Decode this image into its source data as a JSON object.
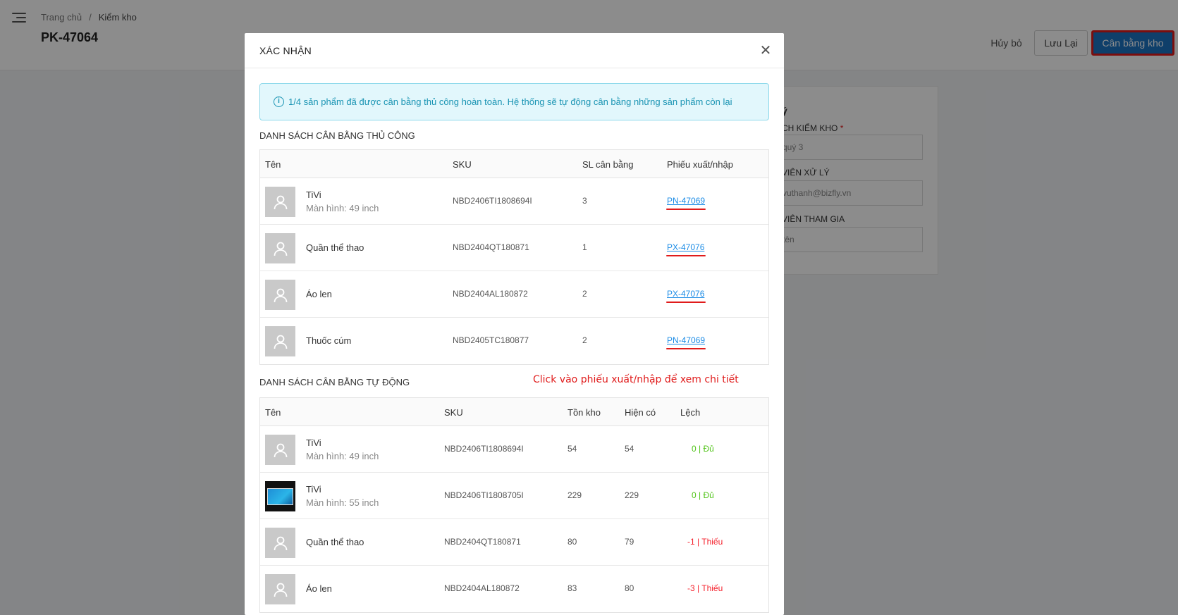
{
  "breadcrumb": {
    "home": "Trang chủ",
    "separator": "/",
    "current": "Kiểm kho"
  },
  "page": {
    "title": "PK-47064"
  },
  "header_buttons": {
    "cancel": "Hủy bỏ",
    "save": "Lưu Lại",
    "balance": "Cân bằng kho"
  },
  "side_form": {
    "heading_fragment": "ý",
    "schedule_label": "CH KIỂM KHO",
    "required_mark": "*",
    "schedule_value": "quý 3",
    "handler_label": "VIÊN XỬ LÝ",
    "handler_value": "vuthanh@bizfly.vn",
    "participants_label": "VIÊN THAM GIA",
    "participants_placeholder": "tên"
  },
  "modal": {
    "title": "XÁC NHẬN",
    "close_icon": "close-icon",
    "alert": "1/4 sản phẩm đã được cân bằng thủ công hoàn toàn. Hệ thống sẽ tự động cân bằng những sản phẩm còn lại",
    "manual_section_title": "DANH SÁCH CÂN BẰNG THỦ CÔNG",
    "auto_section_title": "DANH SÁCH CÂN BẰNG TỰ ĐỘNG",
    "annotation": "Click vào phiếu xuất/nhập để xem chi tiết",
    "manual_headers": [
      "Tên",
      "SKU",
      "SL cân bằng",
      "Phiếu xuất/nhập"
    ],
    "manual_rows": [
      {
        "name": "TiVi",
        "variant": "Màn hình: 49 inch",
        "sku": "NBD2406TI1808694I",
        "qty": "3",
        "voucher": "PN-47069"
      },
      {
        "name": "Quần thể thao",
        "variant": "",
        "sku": "NBD2404QT180871",
        "qty": "1",
        "voucher": "PX-47076"
      },
      {
        "name": "Áo len",
        "variant": "",
        "sku": "NBD2404AL180872",
        "qty": "2",
        "voucher": "PX-47076"
      },
      {
        "name": "Thuốc cúm",
        "variant": "",
        "sku": "NBD2405TC180877",
        "qty": "2",
        "voucher": "PN-47069"
      }
    ],
    "auto_headers": [
      "Tên",
      "SKU",
      "Tồn kho",
      "Hiện có",
      "Lệch"
    ],
    "auto_rows": [
      {
        "name": "TiVi",
        "variant": "Màn hình: 49 inch",
        "sku": "NBD2406TI1808694I",
        "stock": "54",
        "actual": "54",
        "diff": "0 | Đủ",
        "status": "ok",
        "image": "placeholder"
      },
      {
        "name": "TiVi",
        "variant": "Màn hình: 55 inch",
        "sku": "NBD2406TI1808705I",
        "stock": "229",
        "actual": "229",
        "diff": "0 | Đủ",
        "status": "ok",
        "image": "tv"
      },
      {
        "name": "Quần thể thao",
        "variant": "",
        "sku": "NBD2404QT180871",
        "stock": "80",
        "actual": "79",
        "diff": "-1 | Thiếu",
        "status": "lack",
        "image": "placeholder"
      },
      {
        "name": "Áo len",
        "variant": "",
        "sku": "NBD2404AL180872",
        "stock": "83",
        "actual": "80",
        "diff": "-3 | Thiếu",
        "status": "lack",
        "image": "placeholder"
      }
    ]
  },
  "colors": {
    "primary": "#1c73c2",
    "highlight_red": "#e01b1b",
    "link": "#1c8ce6",
    "ok": "#52c41a",
    "lack": "#f5222d",
    "alert_bg": "#e2f7fc"
  }
}
